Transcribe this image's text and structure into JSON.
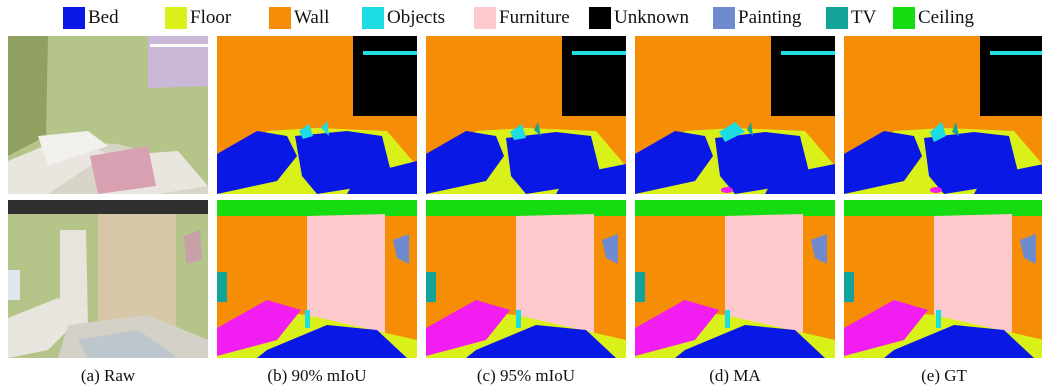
{
  "legend": [
    {
      "label": "Bed",
      "color": "#0a18e6"
    },
    {
      "label": "Floor",
      "color": "#d9f019"
    },
    {
      "label": "Wall",
      "color": "#f58d06"
    },
    {
      "label": "Objects",
      "color": "#1ddde3"
    },
    {
      "label": "Furniture",
      "color": "#fccacc"
    },
    {
      "label": "Unknown",
      "color": "#000000"
    },
    {
      "label": "Painting",
      "color": "#6e8bd0"
    },
    {
      "label": "TV",
      "color": "#12a39a"
    },
    {
      "label": "Ceiling",
      "color": "#15db11"
    }
  ],
  "captions": [
    "(a) Raw",
    "(b) 90% mIoU",
    "(c) 95% mIoU",
    "(d) MA",
    "(e) GT"
  ],
  "palette": {
    "bed": "#0a18e6",
    "floor": "#d9f019",
    "wall": "#f58d06",
    "objects": "#1ddde3",
    "furniture": "#fccacc",
    "unknown": "#000000",
    "painting": "#6e8bd0",
    "tv": "#12a39a",
    "ceiling": "#15db11",
    "magenta": "#f21df0",
    "raw_wall": "#b5c58a",
    "raw_wall_dark": "#8fa060",
    "raw_bed": "#e9e6e0",
    "raw_pillow": "#d8a0b0",
    "raw_door": "#e8e4dc",
    "raw_wardrobe": "#d6c7a6",
    "raw_ceiling": "#2f2f2f",
    "raw_panel": "#c9b8d8"
  }
}
